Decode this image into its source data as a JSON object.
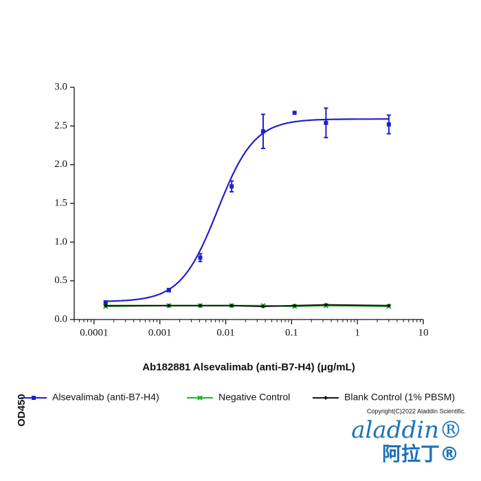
{
  "chart_data": {
    "type": "scatter",
    "xscale": "log",
    "xlabel": "Ab182881 Alsevalimab (anti-B7-H4) (μg/mL)",
    "ylabel": "OD450",
    "xlim": [
      5e-05,
      10
    ],
    "ylim": [
      0,
      3
    ],
    "xticks": [
      0.0001,
      0.001,
      0.01,
      0.1,
      1,
      10
    ],
    "yticks": [
      {
        "value": 0,
        "label": "0.0"
      },
      {
        "value": 0.5,
        "label": "0.5"
      },
      {
        "value": 1,
        "label": "1.0"
      },
      {
        "value": 1.5,
        "label": "1.5"
      },
      {
        "value": 2,
        "label": "2.0"
      },
      {
        "value": 2.5,
        "label": "2.5"
      },
      {
        "value": 3,
        "label": "3.0"
      }
    ],
    "x": [
      0.00015,
      0.00137,
      0.0041,
      0.0123,
      0.037,
      0.111,
      0.333,
      3
    ],
    "series": [
      {
        "name": "Alsevalimab (anti-B7-H4)",
        "color": "#1f1fcc",
        "marker": "square",
        "values": [
          0.22,
          0.38,
          0.8,
          1.72,
          2.43,
          2.67,
          2.54,
          2.52
        ],
        "errors": [
          0.02,
          0.02,
          0.05,
          0.07,
          0.22,
          null,
          0.19,
          0.12
        ],
        "fit": {
          "bottom": 0.23,
          "top": 2.59,
          "ec50": 0.0075,
          "hill": 1.55
        }
      },
      {
        "name": "Negative Control",
        "color": "#22b422",
        "marker": "cross",
        "values": [
          0.17,
          0.18,
          0.18,
          0.18,
          0.18,
          0.17,
          0.18,
          0.17
        ]
      },
      {
        "name": "Blank Control (1% PBSM)",
        "color": "#111111",
        "marker": "diamond",
        "values": [
          0.18,
          0.18,
          0.18,
          0.18,
          0.17,
          0.18,
          0.19,
          0.18
        ]
      }
    ]
  },
  "footer": {
    "copyright": "Copyright(C)2022 Aladdin Scientific.",
    "logo": "aladdin®",
    "logo_cn": "阿拉丁®"
  }
}
